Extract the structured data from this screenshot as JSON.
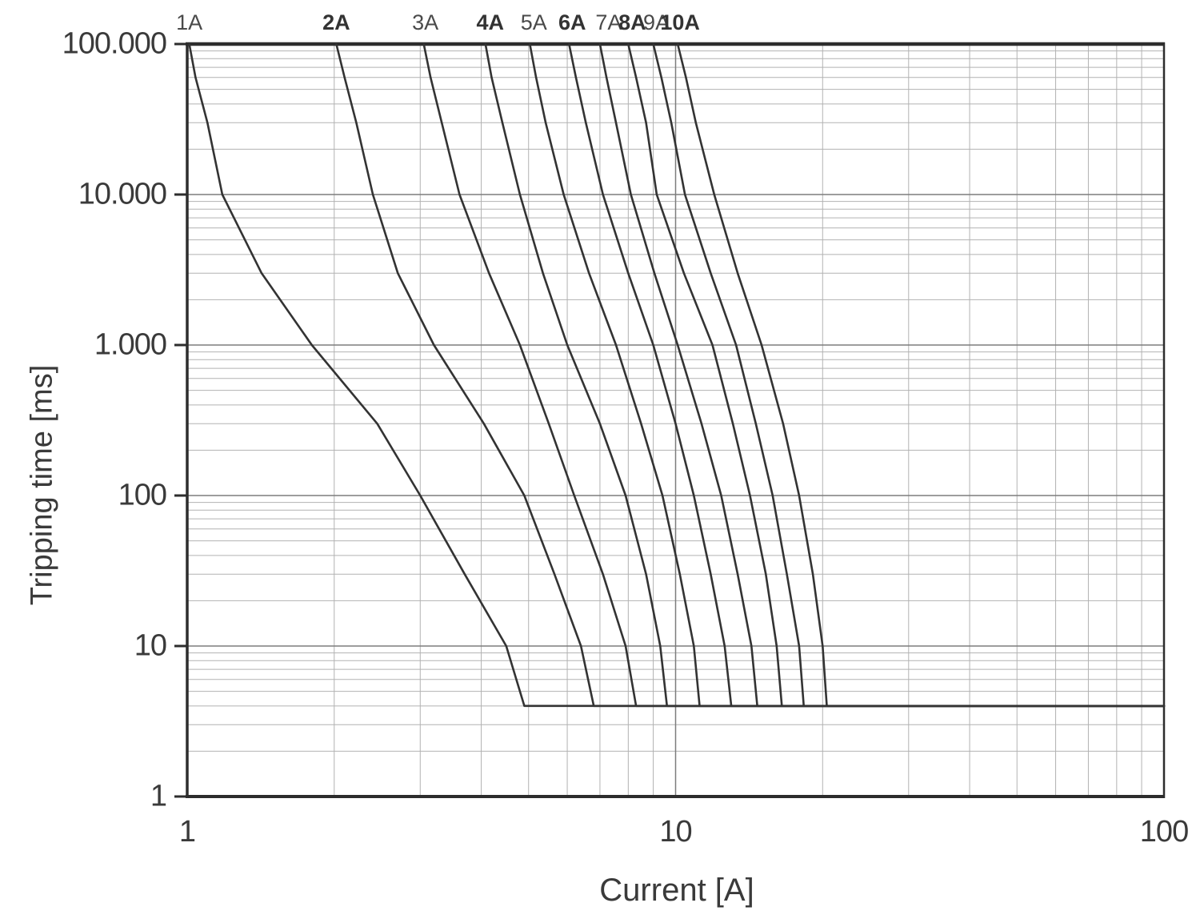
{
  "page": {
    "background": "#ffffff"
  },
  "chart_data": {
    "type": "line",
    "title": "",
    "xlabel": "Current [A]",
    "ylabel": "Tripping time [ms]",
    "x_scale": "log",
    "y_scale": "log",
    "xlim": [
      1,
      100
    ],
    "ylim": [
      1,
      100000
    ],
    "grid": "on",
    "legend_position": "top-curve-labels",
    "x_ticks": [
      {
        "value": 1,
        "label": "1"
      },
      {
        "value": 10,
        "label": "10"
      },
      {
        "value": 100,
        "label": "100"
      }
    ],
    "y_ticks": [
      {
        "value": 100000,
        "label": "100.000"
      },
      {
        "value": 10000,
        "label": "10.000"
      },
      {
        "value": 1000,
        "label": "1.000"
      },
      {
        "value": 100,
        "label": "100"
      },
      {
        "value": 10,
        "label": "10"
      },
      {
        "value": 1,
        "label": "1"
      }
    ],
    "colors": {
      "curve": "#333333",
      "grid_minor": "#b2b2b2",
      "grid_major": "#7d7d7d",
      "border": "#2d2d2d",
      "text": "#3a3a3a"
    },
    "instantaneous_floor_ms": 4,
    "series": [
      {
        "label": "1A",
        "bold": false,
        "rating_a": 1,
        "floor_trip_current_a": 4.9,
        "label_dx": 0,
        "points_t_ms_current_a": [
          [
            100000,
            1.01
          ],
          [
            60000,
            1.04
          ],
          [
            30000,
            1.1
          ],
          [
            10000,
            1.18
          ],
          [
            3000,
            1.42
          ],
          [
            1000,
            1.8
          ],
          [
            300,
            2.45
          ],
          [
            100,
            3.0
          ],
          [
            30,
            3.7
          ],
          [
            10,
            4.5
          ],
          [
            4,
            4.9
          ]
        ]
      },
      {
        "label": "2A",
        "bold": true,
        "rating_a": 2,
        "floor_trip_current_a": 6.8,
        "label_dx": 0,
        "points_t_ms_current_a": [
          [
            100000,
            2.02
          ],
          [
            60000,
            2.1
          ],
          [
            30000,
            2.22
          ],
          [
            10000,
            2.4
          ],
          [
            3000,
            2.7
          ],
          [
            1000,
            3.2
          ],
          [
            300,
            4.05
          ],
          [
            100,
            4.9
          ],
          [
            30,
            5.65
          ],
          [
            10,
            6.4
          ],
          [
            4,
            6.8
          ]
        ]
      },
      {
        "label": "3A",
        "bold": false,
        "rating_a": 3,
        "floor_trip_current_a": 8.3,
        "label_dx": 2,
        "points_t_ms_current_a": [
          [
            100000,
            3.05
          ],
          [
            60000,
            3.15
          ],
          [
            30000,
            3.32
          ],
          [
            10000,
            3.61
          ],
          [
            3000,
            4.15
          ],
          [
            1000,
            4.8
          ],
          [
            300,
            5.5
          ],
          [
            100,
            6.2
          ],
          [
            30,
            7.1
          ],
          [
            10,
            7.9
          ],
          [
            4,
            8.3
          ]
        ]
      },
      {
        "label": "4A",
        "bold": true,
        "rating_a": 4,
        "floor_trip_current_a": 9.6,
        "label_dx": 6,
        "points_t_ms_current_a": [
          [
            100000,
            4.08
          ],
          [
            60000,
            4.2
          ],
          [
            30000,
            4.42
          ],
          [
            10000,
            4.8
          ],
          [
            3000,
            5.35
          ],
          [
            1000,
            6.0
          ],
          [
            300,
            7.0
          ],
          [
            100,
            7.9
          ],
          [
            30,
            8.7
          ],
          [
            10,
            9.3
          ],
          [
            4,
            9.6
          ]
        ]
      },
      {
        "label": "5A",
        "bold": false,
        "rating_a": 5,
        "floor_trip_current_a": 11.2,
        "label_dx": 5,
        "points_t_ms_current_a": [
          [
            100000,
            5.03
          ],
          [
            60000,
            5.18
          ],
          [
            30000,
            5.42
          ],
          [
            10000,
            5.9
          ],
          [
            3000,
            6.65
          ],
          [
            1000,
            7.55
          ],
          [
            300,
            8.5
          ],
          [
            100,
            9.4
          ],
          [
            30,
            10.2
          ],
          [
            10,
            10.9
          ],
          [
            4,
            11.2
          ]
        ]
      },
      {
        "label": "6A",
        "bold": true,
        "rating_a": 6,
        "floor_trip_current_a": 13.0,
        "label_dx": 4,
        "points_t_ms_current_a": [
          [
            100000,
            6.05
          ],
          [
            60000,
            6.25
          ],
          [
            30000,
            6.55
          ],
          [
            10000,
            7.1
          ],
          [
            3000,
            8.0
          ],
          [
            1000,
            9.0
          ],
          [
            300,
            10.0
          ],
          [
            100,
            10.9
          ],
          [
            30,
            11.8
          ],
          [
            10,
            12.6
          ],
          [
            4,
            13.0
          ]
        ]
      },
      {
        "label": "7A",
        "bold": false,
        "rating_a": 7,
        "floor_trip_current_a": 14.7,
        "label_dx": 11,
        "points_t_ms_current_a": [
          [
            100000,
            7.0
          ],
          [
            60000,
            7.22
          ],
          [
            30000,
            7.55
          ],
          [
            10000,
            8.1
          ],
          [
            3000,
            9.05
          ],
          [
            1000,
            10.1
          ],
          [
            300,
            11.3
          ],
          [
            100,
            12.4
          ],
          [
            30,
            13.4
          ],
          [
            10,
            14.3
          ],
          [
            4,
            14.7
          ]
        ]
      },
      {
        "label": "8A",
        "bold": true,
        "rating_a": 8,
        "floor_trip_current_a": 16.5,
        "label_dx": 5,
        "points_t_ms_current_a": [
          [
            100000,
            8.0
          ],
          [
            60000,
            8.3
          ],
          [
            30000,
            8.7
          ],
          [
            10000,
            9.15
          ],
          [
            3000,
            10.4
          ],
          [
            1000,
            11.9
          ],
          [
            300,
            13.1
          ],
          [
            100,
            14.2
          ],
          [
            30,
            15.3
          ],
          [
            10,
            16.1
          ],
          [
            4,
            16.5
          ]
        ]
      },
      {
        "label": "9A",
        "bold": false,
        "rating_a": 9,
        "floor_trip_current_a": 18.3,
        "label_dx": 4,
        "points_t_ms_current_a": [
          [
            100000,
            9.0
          ],
          [
            60000,
            9.35
          ],
          [
            30000,
            9.8
          ],
          [
            10000,
            10.45
          ],
          [
            3000,
            11.8
          ],
          [
            1000,
            13.3
          ],
          [
            300,
            14.6
          ],
          [
            100,
            15.8
          ],
          [
            30,
            16.9
          ],
          [
            10,
            17.9
          ],
          [
            4,
            18.3
          ]
        ]
      },
      {
        "label": "10A",
        "bold": true,
        "rating_a": 10,
        "floor_trip_current_a": 20.4,
        "label_dx": 3,
        "points_t_ms_current_a": [
          [
            100000,
            10.1
          ],
          [
            60000,
            10.5
          ],
          [
            30000,
            11.0
          ],
          [
            10000,
            12.0
          ],
          [
            3000,
            13.4
          ],
          [
            1000,
            15.0
          ],
          [
            300,
            16.6
          ],
          [
            100,
            17.9
          ],
          [
            30,
            19.1
          ],
          [
            10,
            20.0
          ],
          [
            4,
            20.4
          ]
        ]
      }
    ]
  }
}
